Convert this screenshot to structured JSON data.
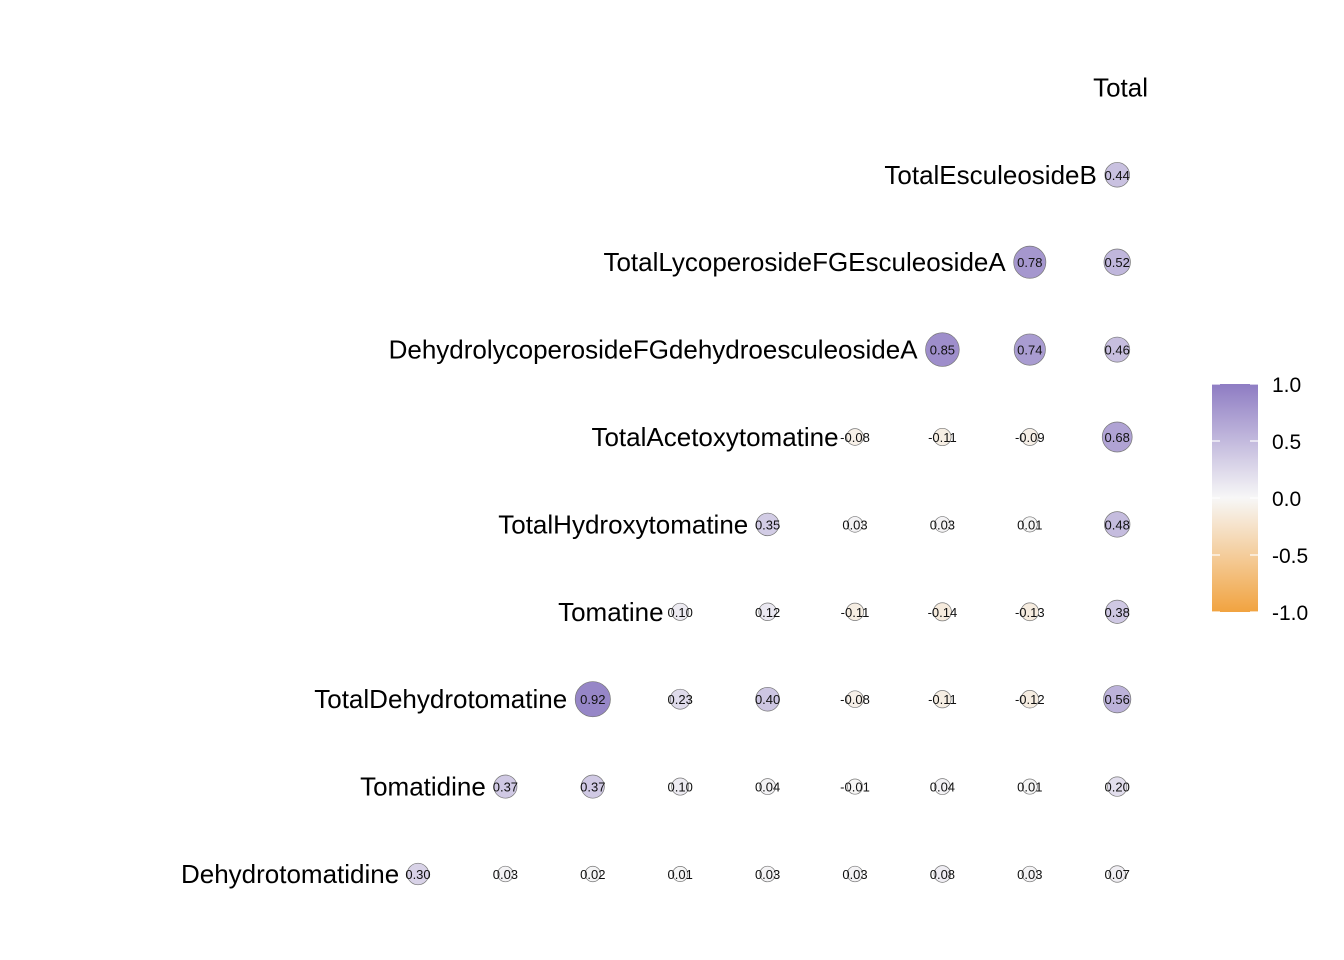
{
  "chart_data": {
    "type": "heatmap",
    "style": "circle correlation matrix (lower triangle)",
    "variables": [
      "Dehydrotomatidine",
      "Tomatidine",
      "TotalDehydrotomatine",
      "Tomatine",
      "TotalHydroxytomatine",
      "TotalAcetoxytomatine",
      "DehydrolycoperosideFGdehydroesculeosideA",
      "TotalLycoperosideFGEsculeosideA",
      "TotalEsculeosideB",
      "Total"
    ],
    "rows": [
      {
        "variable": "Dehydrotomatidine",
        "values": [
          "0.30",
          "0.03",
          "0.02",
          "0.01",
          "0.03",
          "0.03",
          "0.08",
          "0.03",
          "0.07"
        ]
      },
      {
        "variable": "Tomatidine",
        "values": [
          "0.37",
          "0.37",
          "0.10",
          "0.04",
          "-0.01",
          "0.04",
          "0.01",
          "0.20"
        ]
      },
      {
        "variable": "TotalDehydrotomatine",
        "values": [
          "0.92",
          "0.23",
          "0.40",
          "-0.08",
          "-0.11",
          "-0.12",
          "0.56"
        ]
      },
      {
        "variable": "Tomatine",
        "values": [
          "0.10",
          "0.12",
          "-0.11",
          "-0.14",
          "-0.13",
          "0.38"
        ]
      },
      {
        "variable": "TotalHydroxytomatine",
        "values": [
          "0.35",
          "0.03",
          "0.03",
          "0.01",
          "0.48"
        ]
      },
      {
        "variable": "TotalAcetoxytomatine",
        "values": [
          "-0.08",
          "-0.11",
          "-0.09",
          "0.68"
        ]
      },
      {
        "variable": "DehydrolycoperosideFGdehydroesculeosideA",
        "values": [
          "0.85",
          "0.74",
          "0.46"
        ]
      },
      {
        "variable": "TotalLycoperosideFGEsculeosideA",
        "values": [
          "0.78",
          "0.52"
        ]
      },
      {
        "variable": "TotalEsculeosideB",
        "values": [
          "0.44"
        ]
      },
      {
        "variable": "Total",
        "values": []
      }
    ],
    "legend": {
      "position": "right",
      "ticks": [
        "1.0",
        "0.5",
        "0.0",
        "-0.5",
        "-1.0"
      ],
      "range": [
        -1,
        1
      ]
    },
    "colors": {
      "high": "#8e7cc3",
      "mid": "#f7f7f7",
      "low": "#f1a340"
    }
  }
}
